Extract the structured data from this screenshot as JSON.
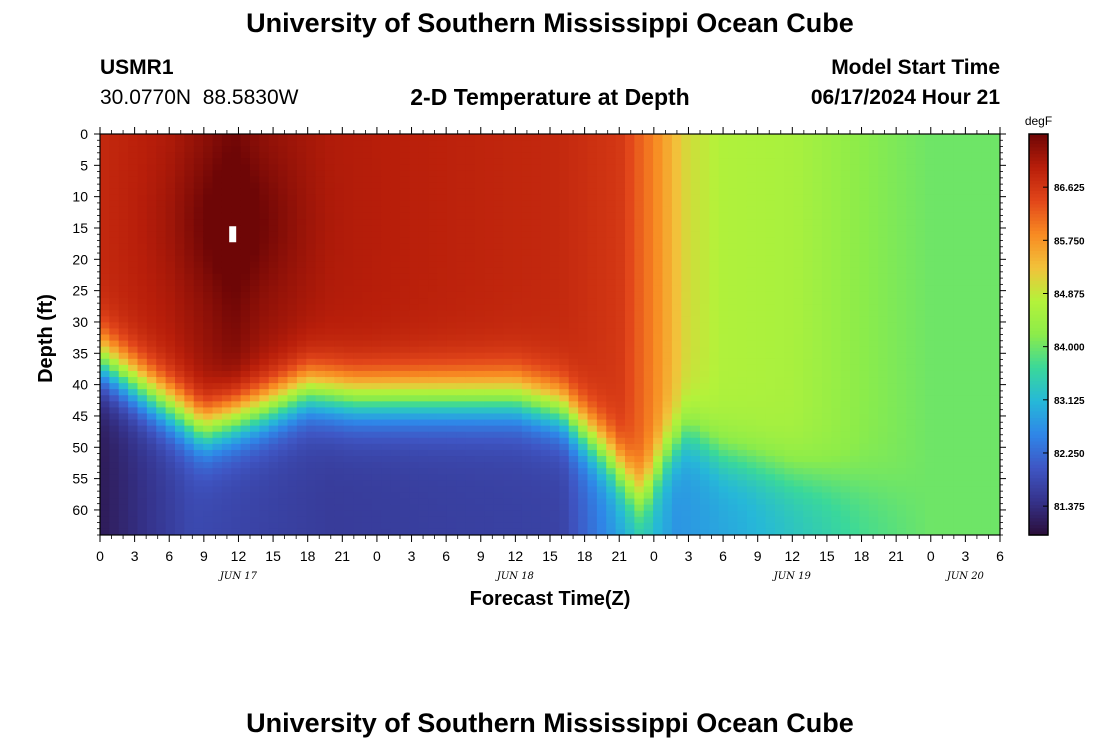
{
  "page": {
    "top_title": "University of Southern Mississippi Ocean Cube",
    "bottom_title": "University of Southern Mississippi Ocean Cube",
    "station_id": "USMR1",
    "station_coords": "30.0770N  88.5830W",
    "subtitle": "2-D Temperature at Depth",
    "model_start_label": "Model Start Time",
    "model_start_value": "06/17/2024 Hour 21"
  },
  "chart_data": {
    "type": "heatmap",
    "title": "2-D Temperature at Depth",
    "xlabel": "Forecast Time(Z)",
    "ylabel": "Depth (ft)",
    "x_unit": "hours",
    "xlim": [
      0,
      78
    ],
    "ylim": [
      0,
      64
    ],
    "y_inverted": true,
    "x_ticks": [
      0,
      3,
      6,
      9,
      12,
      15,
      18,
      21,
      24,
      27,
      30,
      33,
      36,
      39,
      42,
      45,
      48,
      51,
      54,
      57,
      60,
      63,
      66,
      69,
      72,
      75,
      78
    ],
    "x_tick_labels": [
      "0",
      "3",
      "6",
      "9",
      "12",
      "15",
      "18",
      "21",
      "0",
      "3",
      "6",
      "9",
      "12",
      "15",
      "18",
      "21",
      "0",
      "3",
      "6",
      "9",
      "12",
      "15",
      "18",
      "21",
      "0",
      "3",
      "6"
    ],
    "y_ticks": [
      0,
      5,
      10,
      15,
      20,
      25,
      30,
      35,
      40,
      45,
      50,
      55,
      60
    ],
    "y_tick_labels": [
      "0",
      "5",
      "10",
      "15",
      "20",
      "25",
      "30",
      "35",
      "40",
      "45",
      "50",
      "55",
      "60"
    ],
    "date_labels": [
      {
        "text": "JUN 17",
        "x": 12
      },
      {
        "text": "JUN 18",
        "x": 36
      },
      {
        "text": "JUN 19",
        "x": 60
      },
      {
        "text": "JUN 20",
        "x": 75
      }
    ],
    "colorbar": {
      "unit": "degF",
      "range": [
        80.9,
        87.5
      ],
      "ticks": [
        81.375,
        82.25,
        83.125,
        84.0,
        84.875,
        85.75,
        86.625
      ],
      "tick_labels": [
        "81.375",
        "82.250",
        "83.125",
        "84.000",
        "84.875",
        "85.750",
        "86.625"
      ],
      "colormap": [
        "#2b0e3a",
        "#35328a",
        "#3f56c4",
        "#2f86e8",
        "#26b8d8",
        "#3ad89a",
        "#8cec4a",
        "#b4f23a",
        "#f2c23a",
        "#f88a22",
        "#e2461a",
        "#b81e0a",
        "#6e0606"
      ]
    },
    "marker": {
      "x": 11.5,
      "depth": 16,
      "color": "#ffffff"
    },
    "surface_temp_profile": {
      "hours": [
        0,
        6,
        9,
        11.5,
        14,
        20,
        30,
        40,
        45,
        48,
        51,
        54,
        60,
        66,
        72,
        78
      ],
      "degF": [
        86.8,
        87.0,
        87.2,
        87.4,
        87.2,
        87.0,
        86.9,
        86.8,
        86.6,
        85.9,
        85.0,
        84.7,
        84.6,
        84.2,
        84.0,
        84.0
      ]
    },
    "thermocline_depth_profile": {
      "hours": [
        0,
        4,
        9,
        14,
        18,
        22,
        30,
        36,
        40,
        44,
        46,
        47,
        49,
        51,
        54,
        56,
        60,
        66,
        72,
        78
      ],
      "depth_ft": [
        36,
        41,
        47,
        44,
        41,
        42,
        42,
        42,
        44,
        51,
        56,
        58,
        51,
        47,
        51,
        52,
        54,
        56,
        58,
        60
      ]
    },
    "deep_temp_profile": {
      "hours": [
        0,
        8,
        20,
        40,
        47,
        50,
        56,
        66,
        72,
        78
      ],
      "degF": [
        81.1,
        81.8,
        81.6,
        81.7,
        83.3,
        82.7,
        83.0,
        83.7,
        84.0,
        84.0
      ]
    }
  }
}
